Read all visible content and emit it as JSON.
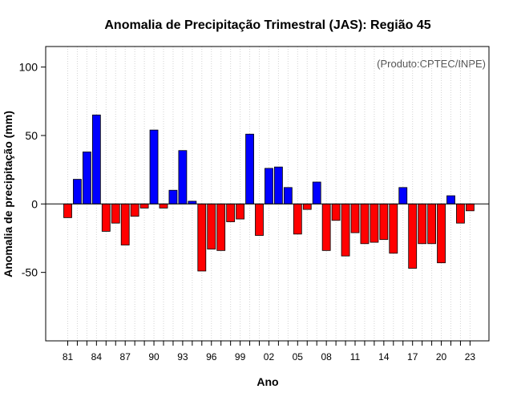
{
  "chart_data": {
    "type": "bar",
    "title": "Anomalia de Precipitação Trimestral (JAS): Região 45",
    "xlabel": "Ano",
    "ylabel": "Anomalia de precipitação (mm)",
    "credit": "(Produto:CPTEC/INPE)",
    "ylim": [
      -100,
      115
    ],
    "yticks": [
      -50,
      0,
      50,
      100
    ],
    "xtick_labels": [
      "81",
      "84",
      "87",
      "90",
      "93",
      "96",
      "99",
      "02",
      "05",
      "08",
      "11",
      "14",
      "17",
      "20",
      "23"
    ],
    "categories": [
      "1981",
      "1982",
      "1983",
      "1984",
      "1985",
      "1986",
      "1987",
      "1988",
      "1989",
      "1990",
      "1991",
      "1992",
      "1993",
      "1994",
      "1995",
      "1996",
      "1997",
      "1998",
      "1999",
      "2000",
      "2001",
      "2002",
      "2003",
      "2004",
      "2005",
      "2006",
      "2007",
      "2008",
      "2009",
      "2010",
      "2011",
      "2012",
      "2013",
      "2014",
      "2015",
      "2016",
      "2017",
      "2018",
      "2019",
      "2020",
      "2021",
      "2022",
      "2023"
    ],
    "values": [
      -10,
      18,
      38,
      65,
      -20,
      -14,
      -30,
      -9,
      -3,
      54,
      -3,
      10,
      39,
      2,
      -49,
      -33,
      -34,
      -13,
      -11,
      51,
      -23,
      26,
      27,
      12,
      -22,
      -4,
      16,
      -34,
      -12,
      -38,
      -21,
      -29,
      -28,
      -26,
      -36,
      12,
      -47,
      -29,
      -29,
      -43,
      6,
      -14,
      -5
    ],
    "positive_color": "#0000ff",
    "negative_color": "#ff0000",
    "grid": "vertical dotted",
    "zero_line": true
  }
}
